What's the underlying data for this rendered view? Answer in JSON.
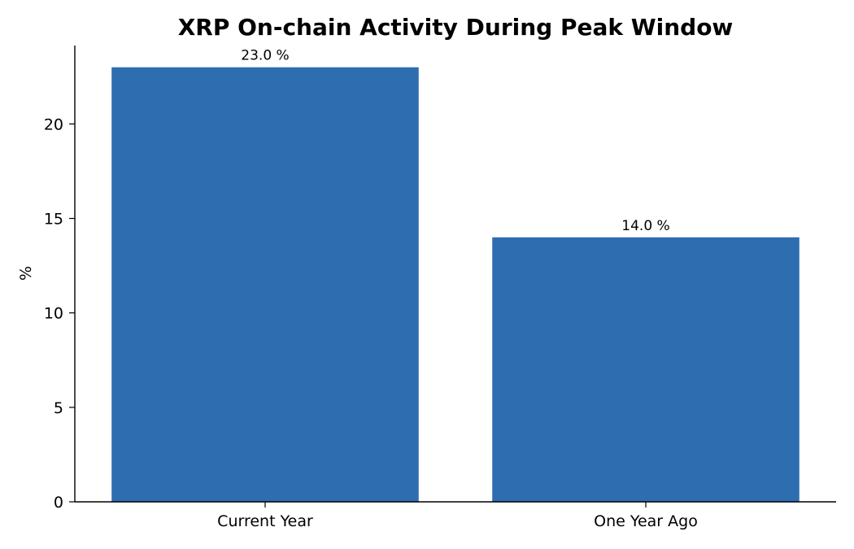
{
  "chart_data": {
    "type": "bar",
    "title": "XRP On-chain Activity During Peak Window",
    "xlabel": "",
    "ylabel": "%",
    "categories": [
      "Current Year",
      "One Year Ago"
    ],
    "values": [
      23.0,
      14.0
    ],
    "data_labels": [
      "23.0 %",
      "14.0 %"
    ],
    "ylim": [
      0,
      24.15
    ],
    "yticks": [
      0,
      5,
      10,
      15,
      20
    ],
    "ytick_labels": [
      "0",
      "5",
      "10",
      "15",
      "20"
    ],
    "bar_color": "#2e6db0",
    "grid": false,
    "legend": "none"
  }
}
